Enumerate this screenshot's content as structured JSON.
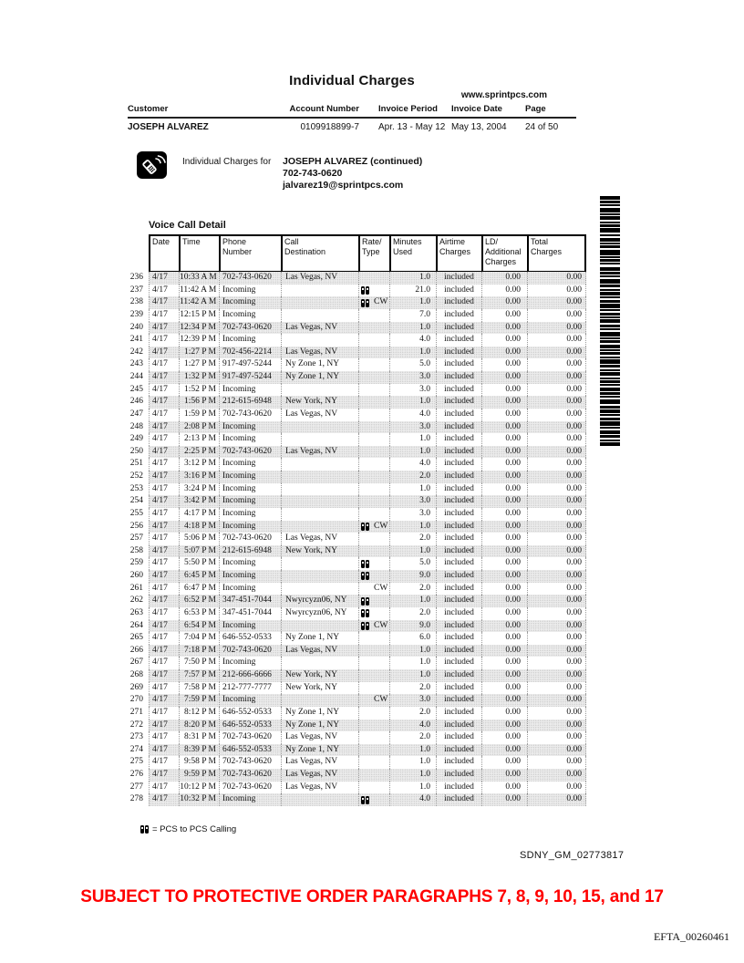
{
  "doc": {
    "title": "Individual Charges",
    "website": "www.sprintpcs.com",
    "account_strip": {
      "labels": [
        "Customer",
        "Account Number",
        "Invoice Period",
        "Invoice Date",
        "Page"
      ],
      "customer": "JOSEPH ALVAREZ",
      "account_number": "0109918899-7",
      "invoice_period": "Apr. 13 - May 12",
      "invoice_date": "May 13, 2004",
      "page": "24 of 50"
    },
    "charges_for": {
      "label": "Individual Charges for",
      "name": "JOSEPH ALVAREZ (continued)",
      "phone": "702-743-0620",
      "email": "jalvarez19@sprintpcs.com"
    },
    "section_title": "Voice Call Detail",
    "table": {
      "headers": [
        "Date",
        "Time",
        "Phone\nNumber",
        "Call\nDestination",
        "Rate/\nType",
        "Minutes\nUsed",
        "Airtime\nCharges",
        "LD/\nAdditional\nCharges",
        "Total\nCharges"
      ],
      "row_format": [
        "num",
        "date",
        "time",
        "phone_or_incoming",
        "destination",
        "pcs_to_pcs_icon",
        "rate_type",
        "minutes_used"
      ],
      "common_values": {
        "airtime": "included",
        "ld_additional": "0.00",
        "total": "0.00"
      },
      "rows": [
        [
          "236",
          "4/17",
          "10:33 A M",
          "702-743-0620",
          "Las Vegas, NV",
          0,
          "",
          "1.0"
        ],
        [
          "237",
          "4/17",
          "11:42 A M",
          "Incoming",
          "",
          1,
          "",
          "21.0"
        ],
        [
          "238",
          "4/17",
          "11:42 A M",
          "Incoming",
          "",
          1,
          "CW",
          "1.0"
        ],
        [
          "239",
          "4/17",
          "12:15 P M",
          "Incoming",
          "",
          0,
          "",
          "7.0"
        ],
        [
          "240",
          "4/17",
          "12:34 P M",
          "702-743-0620",
          "Las Vegas, NV",
          0,
          "",
          "1.0"
        ],
        [
          "241",
          "4/17",
          "12:39 P M",
          "Incoming",
          "",
          0,
          "",
          "4.0"
        ],
        [
          "242",
          "4/17",
          "1:27 P M",
          "702-456-2214",
          "Las Vegas, NV",
          0,
          "",
          "1.0"
        ],
        [
          "243",
          "4/17",
          "1:27 P M",
          "917-497-5244",
          "Ny Zone 1, NY",
          0,
          "",
          "5.0"
        ],
        [
          "244",
          "4/17",
          "1:32 P M",
          "917-497-5244",
          "Ny Zone 1, NY",
          0,
          "",
          "3.0"
        ],
        [
          "245",
          "4/17",
          "1:52 P M",
          "Incoming",
          "",
          0,
          "",
          "3.0"
        ],
        [
          "246",
          "4/17",
          "1:56 P M",
          "212-615-6948",
          "New York, NY",
          0,
          "",
          "1.0"
        ],
        [
          "247",
          "4/17",
          "1:59 P M",
          "702-743-0620",
          "Las Vegas, NV",
          0,
          "",
          "4.0"
        ],
        [
          "248",
          "4/17",
          "2:08 P M",
          "Incoming",
          "",
          0,
          "",
          "3.0"
        ],
        [
          "249",
          "4/17",
          "2:13 P M",
          "Incoming",
          "",
          0,
          "",
          "1.0"
        ],
        [
          "250",
          "4/17",
          "2:25 P M",
          "702-743-0620",
          "Las Vegas, NV",
          0,
          "",
          "1.0"
        ],
        [
          "251",
          "4/17",
          "3:12 P M",
          "Incoming",
          "",
          0,
          "",
          "4.0"
        ],
        [
          "252",
          "4/17",
          "3:16 P M",
          "Incoming",
          "",
          0,
          "",
          "2.0"
        ],
        [
          "253",
          "4/17",
          "3:24 P M",
          "Incoming",
          "",
          0,
          "",
          "1.0"
        ],
        [
          "254",
          "4/17",
          "3:42 P M",
          "Incoming",
          "",
          0,
          "",
          "3.0"
        ],
        [
          "255",
          "4/17",
          "4:17 P M",
          "Incoming",
          "",
          0,
          "",
          "3.0"
        ],
        [
          "256",
          "4/17",
          "4:18 P M",
          "Incoming",
          "",
          1,
          "CW",
          "1.0"
        ],
        [
          "257",
          "4/17",
          "5:06 P M",
          "702-743-0620",
          "Las Vegas, NV",
          0,
          "",
          "2.0"
        ],
        [
          "258",
          "4/17",
          "5:07 P M",
          "212-615-6948",
          "New York, NY",
          0,
          "",
          "1.0"
        ],
        [
          "259",
          "4/17",
          "5:50 P M",
          "Incoming",
          "",
          1,
          "",
          "5.0"
        ],
        [
          "260",
          "4/17",
          "6:45 P M",
          "Incoming",
          "",
          1,
          "",
          "9.0"
        ],
        [
          "261",
          "4/17",
          "6:47 P M",
          "Incoming",
          "",
          0,
          "CW",
          "2.0"
        ],
        [
          "262",
          "4/17",
          "6:52 P M",
          "347-451-7044",
          "Nwyrcyzn06, NY",
          1,
          "",
          "1.0"
        ],
        [
          "263",
          "4/17",
          "6:53 P M",
          "347-451-7044",
          "Nwyrcyzn06, NY",
          1,
          "",
          "2.0"
        ],
        [
          "264",
          "4/17",
          "6:54 P M",
          "Incoming",
          "",
          1,
          "CW",
          "9.0"
        ],
        [
          "265",
          "4/17",
          "7:04 P M",
          "646-552-0533",
          "Ny Zone 1, NY",
          0,
          "",
          "6.0"
        ],
        [
          "266",
          "4/17",
          "7:18 P M",
          "702-743-0620",
          "Las Vegas, NV",
          0,
          "",
          "1.0"
        ],
        [
          "267",
          "4/17",
          "7:50 P M",
          "Incoming",
          "",
          0,
          "",
          "1.0"
        ],
        [
          "268",
          "4/17",
          "7:57 P M",
          "212-666-6666",
          "New York, NY",
          0,
          "",
          "1.0"
        ],
        [
          "269",
          "4/17",
          "7:58 P M",
          "212-777-7777",
          "New York, NY",
          0,
          "",
          "2.0"
        ],
        [
          "270",
          "4/17",
          "7:59 P M",
          "Incoming",
          "",
          0,
          "CW",
          "3.0"
        ],
        [
          "271",
          "4/17",
          "8:12 P M",
          "646-552-0533",
          "Ny Zone 1, NY",
          0,
          "",
          "2.0"
        ],
        [
          "272",
          "4/17",
          "8:20 P M",
          "646-552-0533",
          "Ny Zone 1, NY",
          0,
          "",
          "4.0"
        ],
        [
          "273",
          "4/17",
          "8:31 P M",
          "702-743-0620",
          "Las Vegas, NV",
          0,
          "",
          "2.0"
        ],
        [
          "274",
          "4/17",
          "8:39 P M",
          "646-552-0533",
          "Ny Zone 1, NY",
          0,
          "",
          "1.0"
        ],
        [
          "275",
          "4/17",
          "9:58 P M",
          "702-743-0620",
          "Las Vegas, NV",
          0,
          "",
          "1.0"
        ],
        [
          "276",
          "4/17",
          "9:59 P M",
          "702-743-0620",
          "Las Vegas, NV",
          0,
          "",
          "1.0"
        ],
        [
          "277",
          "4/17",
          "10:12 P M",
          "702-743-0620",
          "Las Vegas, NV",
          0,
          "",
          "1.0"
        ],
        [
          "278",
          "4/17",
          "10:32 P M",
          "Incoming",
          "",
          1,
          "",
          "4.0"
        ]
      ]
    },
    "legend": "= PCS to PCS Calling",
    "bates_sdny": "SDNY_GM_02773817",
    "protective_order": "SUBJECT TO PROTECTIVE ORDER PARAGRAPHS 7, 8, 9, 10, 15, and 17",
    "bates_efta": "EFTA_00260461",
    "colors": {
      "protective_red": "#ff0000",
      "shaded_row": "#ebebeb"
    },
    "barcode_pattern": [
      4,
      1,
      3,
      1,
      2,
      2,
      5,
      1,
      2,
      1,
      4,
      2,
      2,
      1,
      3,
      1,
      5,
      2,
      2,
      2,
      4,
      1,
      2,
      1,
      3,
      2,
      6,
      1,
      2,
      1,
      3,
      1,
      2,
      3,
      4,
      1,
      3,
      1,
      2,
      2,
      5,
      1,
      3,
      2,
      2,
      1,
      4,
      1,
      2,
      2,
      3,
      1,
      5,
      1,
      2,
      2,
      3,
      1,
      2,
      1,
      4,
      2,
      3,
      1,
      2,
      2,
      5,
      1,
      2,
      1,
      3,
      2,
      4,
      1,
      2,
      1,
      3,
      2,
      2,
      1,
      5,
      1,
      3,
      2,
      2,
      1,
      4,
      2,
      2,
      1,
      3,
      1,
      2,
      2,
      4,
      1,
      3,
      1,
      2,
      2,
      5,
      2,
      3,
      1,
      4,
      1,
      2,
      2,
      3,
      1,
      5,
      1,
      2,
      2,
      4,
      1,
      3,
      2,
      2,
      1,
      4,
      2
    ]
  }
}
